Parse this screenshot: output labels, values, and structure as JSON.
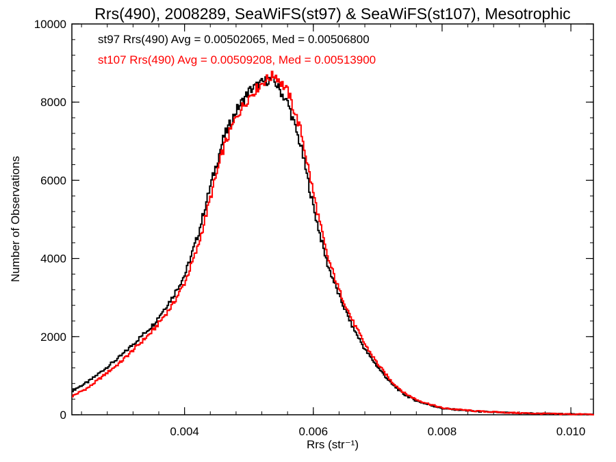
{
  "chart_data": {
    "type": "line",
    "title": "Rrs(490), 2008289, SeaWiFS(st97) & SeaWiFS(st107), Mesotrophic",
    "xlabel": "Rrs (str⁻¹)",
    "ylabel": "Number of Observations",
    "xlim": [
      0.00225,
      0.01035
    ],
    "ylim": [
      0,
      10000
    ],
    "x_ticks": [
      0.004,
      0.006,
      0.008,
      0.01
    ],
    "x_tick_labels": [
      "0.004",
      "0.006",
      "0.008",
      "0.010"
    ],
    "y_ticks": [
      0,
      2000,
      4000,
      6000,
      8000,
      10000
    ],
    "y_tick_labels": [
      "0",
      "2000",
      "4000",
      "6000",
      "8000",
      "10000"
    ],
    "grid": false,
    "legend_position": "top-left",
    "annotations": [
      {
        "text": "st97 Rrs(490) Avg = 0.00502065, Med = 0.00506800",
        "color": "#000000"
      },
      {
        "text": "st107 Rrs(490) Avg = 0.00509208, Med = 0.00513900",
        "color": "#ff0000"
      }
    ],
    "x": [
      0.00225,
      0.0025,
      0.003,
      0.0035,
      0.0038,
      0.004,
      0.0042,
      0.0044,
      0.0046,
      0.0048,
      0.005,
      0.0052,
      0.0053,
      0.0054,
      0.0056,
      0.0058,
      0.006,
      0.0062,
      0.0064,
      0.0066,
      0.0068,
      0.007,
      0.0072,
      0.0074,
      0.0076,
      0.0078,
      0.008,
      0.0085,
      0.009,
      0.0095,
      0.01,
      0.01035
    ],
    "series": [
      {
        "name": "st97",
        "color": "#000000",
        "values": [
          620,
          850,
          1500,
          2300,
          3000,
          3600,
          4600,
          5900,
          7100,
          7800,
          8300,
          8500,
          8580,
          8500,
          7950,
          6850,
          5250,
          3900,
          3000,
          2250,
          1650,
          1200,
          800,
          520,
          350,
          250,
          160,
          90,
          50,
          30,
          15,
          10
        ]
      },
      {
        "name": "st107",
        "color": "#ff0000",
        "values": [
          480,
          700,
          1350,
          2150,
          2800,
          3400,
          4300,
          5600,
          6850,
          7650,
          8150,
          8500,
          8620,
          8700,
          8250,
          7250,
          5600,
          4100,
          3150,
          2400,
          1780,
          1280,
          860,
          560,
          380,
          270,
          170,
          95,
          55,
          30,
          15,
          10
        ]
      }
    ]
  }
}
